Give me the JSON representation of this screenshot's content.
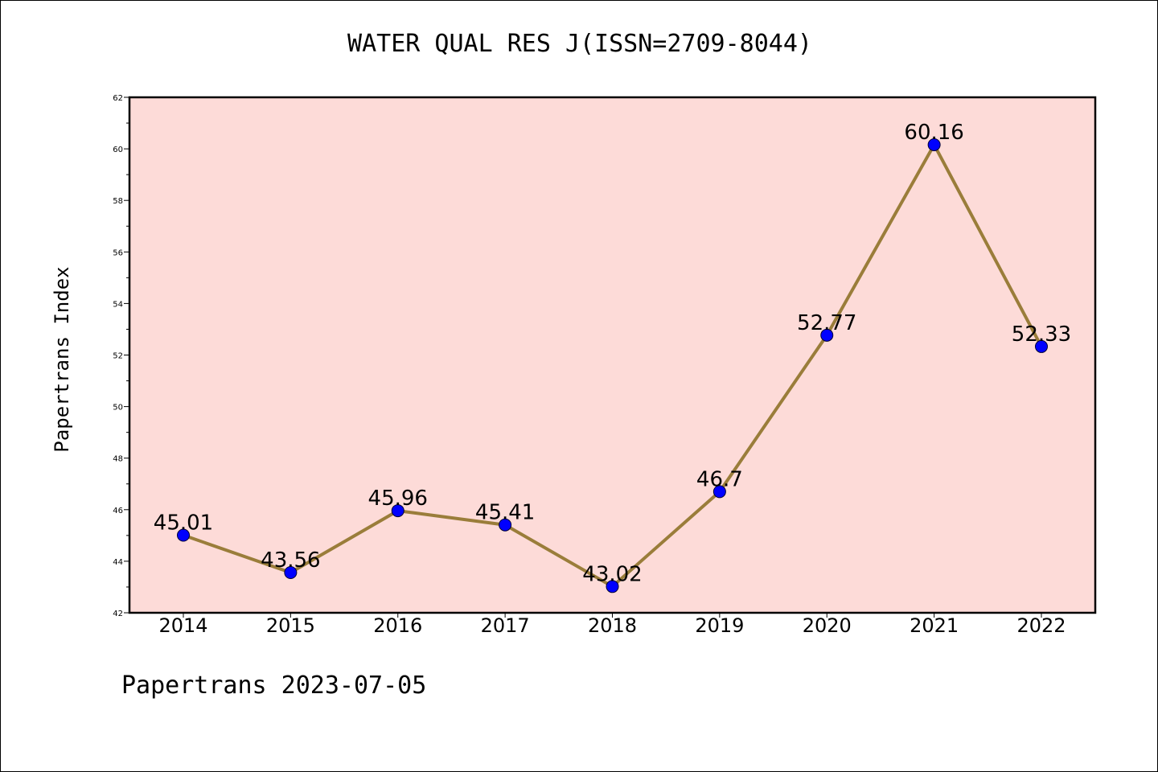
{
  "chart_data": {
    "type": "line",
    "title": "WATER QUAL RES J(ISSN=2709-8044)",
    "ylabel": "Papertrans Index",
    "xlabel": "",
    "categories": [
      "2014",
      "2015",
      "2016",
      "2017",
      "2018",
      "2019",
      "2020",
      "2021",
      "2022"
    ],
    "series": [
      {
        "values": [
          45.01,
          43.56,
          45.96,
          45.41,
          43.02,
          46.7,
          52.77,
          60.16,
          52.33
        ],
        "labels": [
          "45.01",
          "43.56",
          "45.96",
          "45.41",
          "43.02",
          "46.7",
          "52.77",
          "60.16",
          "52.33"
        ],
        "line_color": "#9a7d3a",
        "marker_color": "#0000ff"
      }
    ],
    "ylim": [
      42,
      62
    ],
    "yticks": [
      "42",
      "44",
      "46",
      "48",
      "50",
      "52",
      "54",
      "56",
      "58",
      "60",
      "62"
    ],
    "grid": false,
    "plot_background": "#fddbd8"
  },
  "footer": "Papertrans 2023-07-05"
}
